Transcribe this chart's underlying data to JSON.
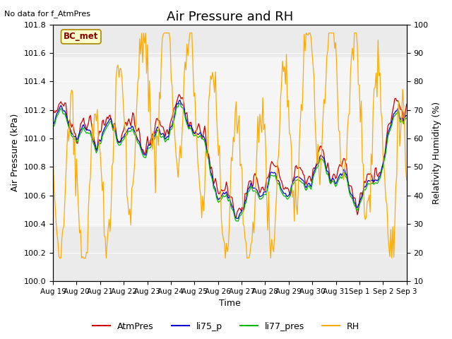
{
  "title": "Air Pressure and RH",
  "no_data_text": "No data for f_AtmPres",
  "bc_met_label": "BC_met",
  "xlabel": "Time",
  "ylabel_left": "Air Pressure (kPa)",
  "ylabel_right": "Relativity Humidity (%)",
  "ylim_left": [
    100.0,
    101.8
  ],
  "ylim_right": [
    10,
    100
  ],
  "yticks_left": [
    100.0,
    100.2,
    100.4,
    100.6,
    100.8,
    101.0,
    101.2,
    101.4,
    101.6,
    101.8
  ],
  "yticks_right": [
    10,
    20,
    30,
    40,
    50,
    60,
    70,
    80,
    90,
    100
  ],
  "xtick_labels": [
    "Aug 19",
    "Aug 20",
    "Aug 21",
    "Aug 22",
    "Aug 23",
    "Aug 24",
    "Aug 25",
    "Aug 26",
    "Aug 27",
    "Aug 28",
    "Aug 29",
    "Aug 30",
    "Aug 31",
    "Sep 1",
    "Sep 2",
    "Sep 3"
  ],
  "n_xticks": 16,
  "colors": {
    "AtmPres": "#cc0000",
    "li75_p": "#0000cc",
    "li77_pres": "#00bb00",
    "RH": "#ffaa00"
  },
  "background_color": "#ffffff",
  "plot_bg_color": "#ebebeb",
  "shaded_band": [
    100.38,
    101.57
  ],
  "shaded_color": "#d8d8d8",
  "title_fontsize": 13,
  "label_fontsize": 9,
  "tick_fontsize": 8,
  "legend_fontsize": 9,
  "n_days": 15,
  "n_per_day": 24,
  "base_pressure": 100.9,
  "figsize": [
    6.4,
    4.8
  ],
  "dpi": 100
}
